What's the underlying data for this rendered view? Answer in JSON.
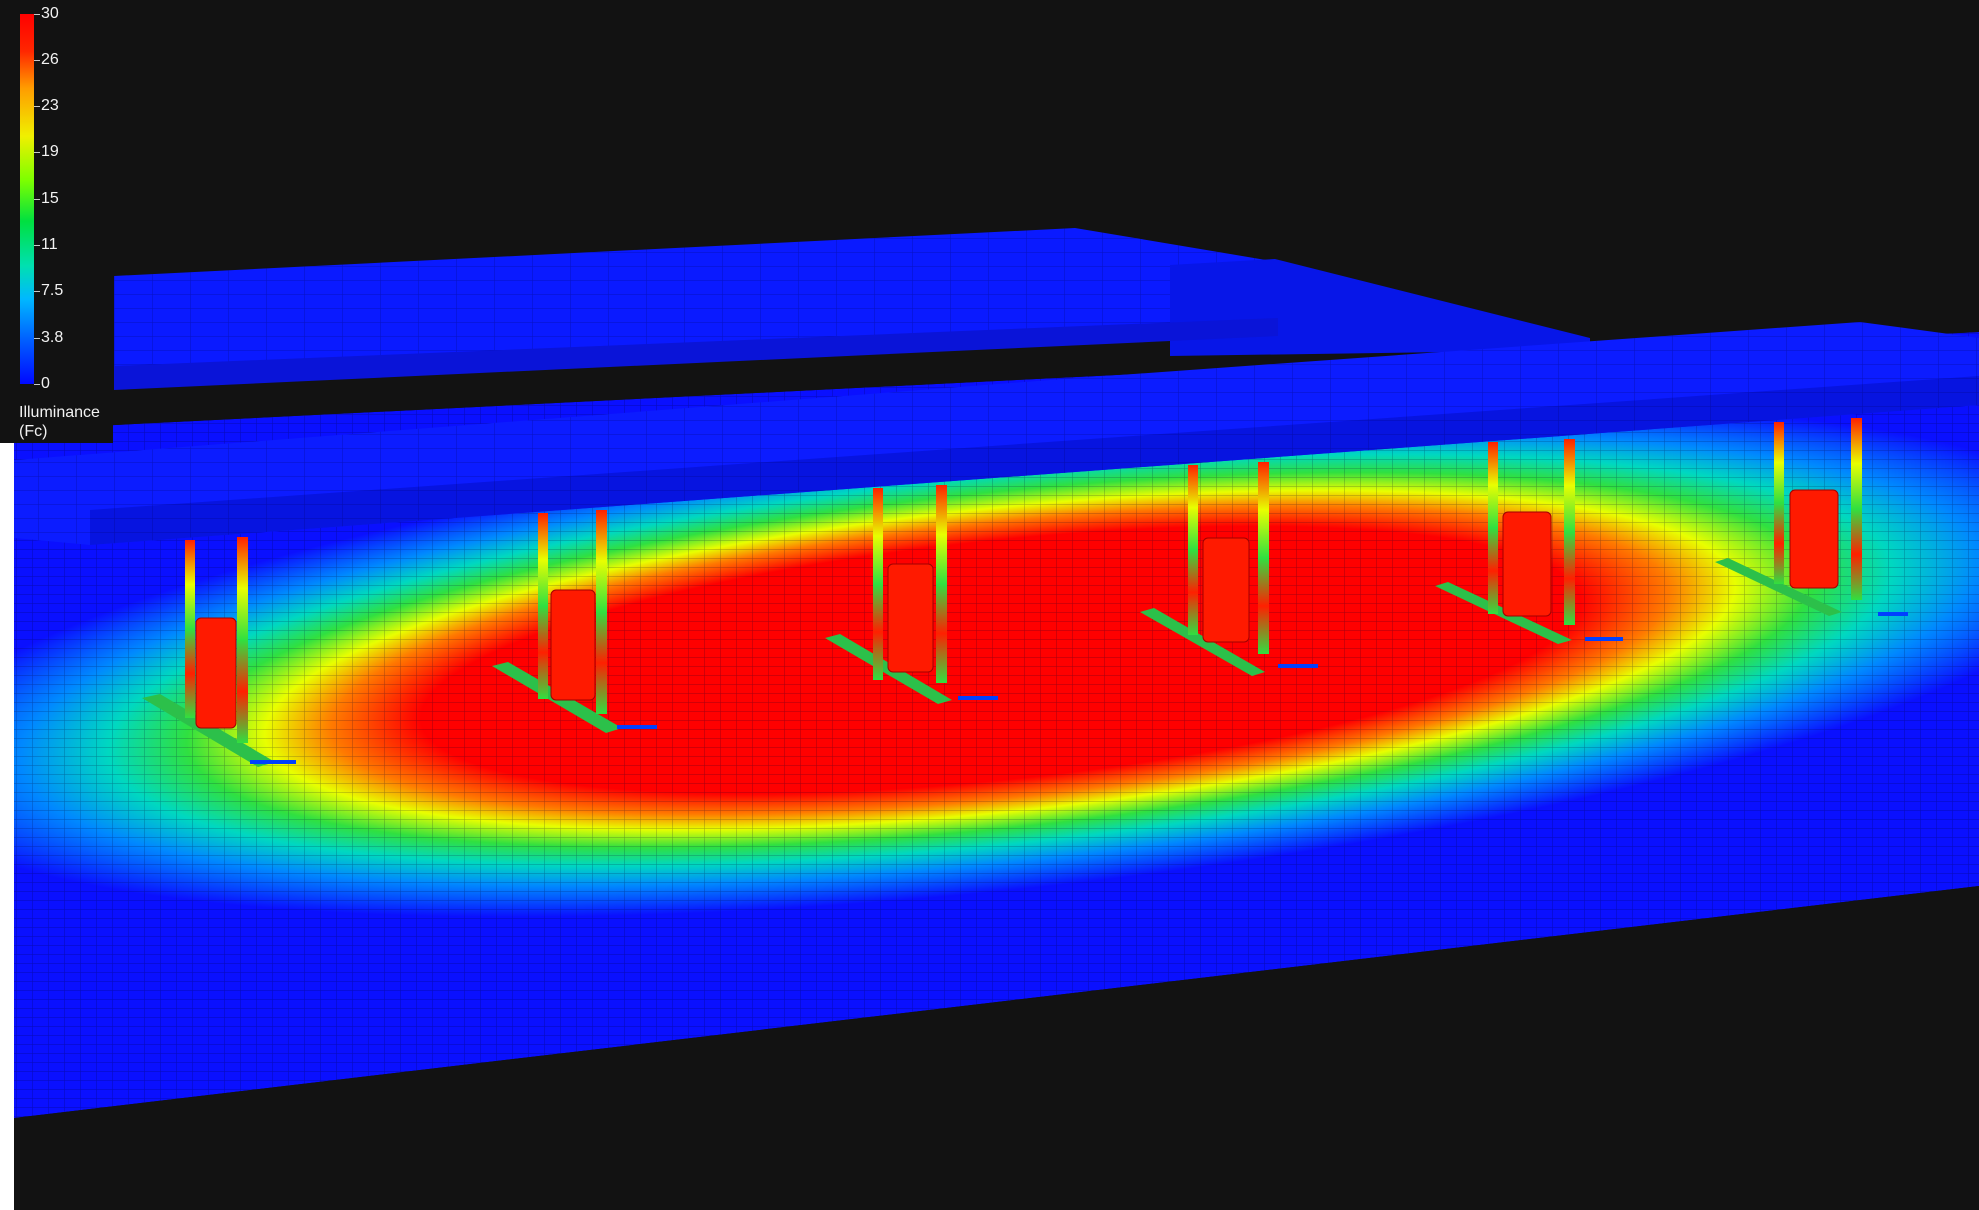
{
  "legend": {
    "ticks": [
      "30",
      "26",
      "23",
      "19",
      "15",
      "11",
      "7.5",
      "3.8",
      "0"
    ],
    "title": "Illuminance",
    "unit": "(Fc)",
    "max": 30,
    "min": 0
  },
  "colors": {
    "background": "#121212",
    "low": "#0008ff",
    "high": "#ff0000"
  },
  "scene": {
    "description_icon": "fuel-canopy-illuminance-render",
    "pump_islands": 6,
    "canopy_columns_per_island": 2
  }
}
